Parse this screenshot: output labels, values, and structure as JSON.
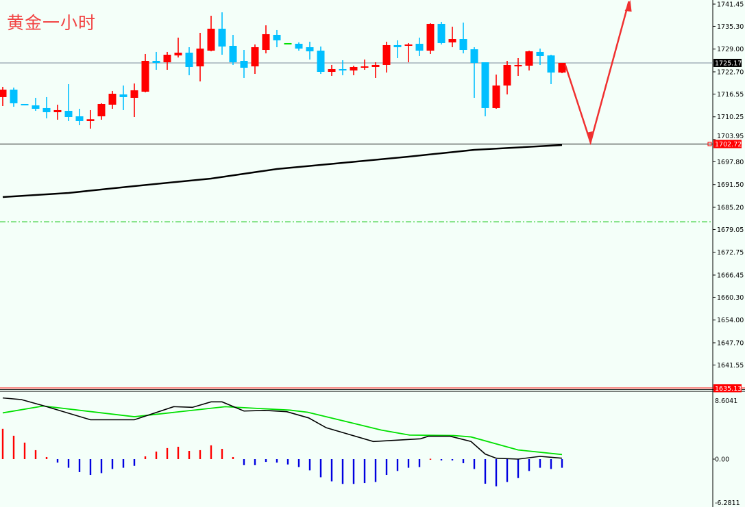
{
  "title": "黄金一小时",
  "colors": {
    "background": "#f4fff9",
    "up": "#ff0000",
    "down": "#00bfff",
    "ma": "#000000",
    "macd_line": "#000000",
    "signal_line": "#00e000",
    "hist_pos": "#ff0000",
    "hist_neg": "#0000e0",
    "arrow": "#f03030",
    "level_dash": "#00c000"
  },
  "chart_data": [
    {
      "type": "candlestick",
      "title": "黄金一小时",
      "ylim": [
        1635.13,
        1741.45
      ],
      "y_ticks": [
        "1741.45",
        "1735.30",
        "1729.00",
        "1722.70",
        "1716.55",
        "1710.25",
        "1703.95",
        "1697.80",
        "1691.50",
        "1685.20",
        "1679.05",
        "1672.75",
        "1666.45",
        "1660.30",
        "1654.00",
        "1647.70",
        "1641.55"
      ],
      "current_price_label": "1725.17",
      "level_label": "1702.72",
      "bottom_label": "1635.13",
      "horizontal_lines": [
        {
          "price": 1725.17,
          "color": "#7a8a9a",
          "style": "solid"
        },
        {
          "price": 1702.72,
          "color": "#000000",
          "style": "solid"
        },
        {
          "price": 1681.2,
          "color": "#00c000",
          "style": "dashdot"
        }
      ],
      "ohlc": [
        [
          1715.7,
          1718.54,
          1713.23,
          1717.78
        ],
        [
          1717.78,
          1718.35,
          1713.04,
          1714.0
        ],
        [
          1713.8,
          1713.8,
          1713.42,
          1713.42
        ],
        [
          1713.42,
          1715.51,
          1711.91,
          1712.47
        ],
        [
          1712.67,
          1715.7,
          1709.82,
          1711.53
        ],
        [
          1711.53,
          1713.61,
          1709.45,
          1712.1
        ],
        [
          1711.91,
          1719.29,
          1709.07,
          1710.2
        ],
        [
          1710.39,
          1712.47,
          1707.93,
          1709.07
        ],
        [
          1709.07,
          1712.1,
          1706.98,
          1709.58
        ],
        [
          1710.39,
          1714.0,
          1709.45,
          1713.8
        ],
        [
          1713.61,
          1717.4,
          1712.47,
          1716.64
        ],
        [
          1716.45,
          1718.92,
          1712.1,
          1715.7
        ],
        [
          1715.51,
          1719.48,
          1710.2,
          1717.59
        ],
        [
          1717.21,
          1727.63,
          1717.02,
          1725.73
        ],
        [
          1725.73,
          1728.2,
          1723.27,
          1725.17
        ],
        [
          1725.35,
          1728.2,
          1723.27,
          1727.44
        ],
        [
          1727.25,
          1732.17,
          1726.68,
          1728.01
        ],
        [
          1728.01,
          1729.52,
          1721.76,
          1724.03
        ],
        [
          1724.22,
          1733.5,
          1720.05,
          1729.14
        ],
        [
          1728.57,
          1738.23,
          1728.38,
          1734.64
        ],
        [
          1734.64,
          1739.18,
          1727.44,
          1729.71
        ],
        [
          1729.9,
          1732.93,
          1724.6,
          1725.35
        ],
        [
          1725.73,
          1728.76,
          1721.0,
          1723.84
        ],
        [
          1724.22,
          1730.28,
          1722.13,
          1729.52
        ],
        [
          1728.76,
          1735.58,
          1727.82,
          1733.12
        ],
        [
          1732.93,
          1734.26,
          1729.52,
          1731.42
        ],
        [
          1730.66,
          1730.66,
          1730.66,
          1730.66
        ],
        [
          1730.47,
          1730.85,
          1728.57,
          1729.14
        ],
        [
          1729.52,
          1731.04,
          1726.11,
          1728.38
        ],
        [
          1728.57,
          1729.71,
          1722.13,
          1722.7
        ],
        [
          1722.7,
          1724.6,
          1721.57,
          1723.46
        ],
        [
          1723.46,
          1725.92,
          1721.76,
          1723.27
        ],
        [
          1723.08,
          1724.41,
          1721.76,
          1724.03
        ],
        [
          1723.84,
          1726.11,
          1723.27,
          1724.22
        ],
        [
          1724.03,
          1725.35,
          1721.0,
          1724.6
        ],
        [
          1724.6,
          1731.04,
          1722.51,
          1730.09
        ],
        [
          1730.09,
          1731.42,
          1726.49,
          1729.52
        ],
        [
          1729.9,
          1730.66,
          1725.35,
          1730.28
        ],
        [
          1730.47,
          1732.17,
          1727.06,
          1728.57
        ],
        [
          1728.57,
          1736.15,
          1727.63,
          1735.96
        ],
        [
          1735.96,
          1736.53,
          1730.28,
          1730.66
        ],
        [
          1730.85,
          1735.2,
          1729.52,
          1731.79
        ],
        [
          1731.79,
          1736.34,
          1727.82,
          1728.76
        ],
        [
          1728.95,
          1729.52,
          1715.51,
          1725.17
        ],
        [
          1725.35,
          1725.35,
          1710.39,
          1712.67
        ],
        [
          1712.67,
          1721.95,
          1712.47,
          1718.92
        ],
        [
          1718.92,
          1725.73,
          1716.45,
          1724.6
        ],
        [
          1724.22,
          1726.49,
          1721.57,
          1724.6
        ],
        [
          1724.41,
          1728.57,
          1723.08,
          1728.38
        ],
        [
          1728.2,
          1729.14,
          1724.6,
          1727.06
        ],
        [
          1727.25,
          1727.44,
          1719.29,
          1722.51
        ],
        [
          1722.51,
          1725.17,
          1722.32,
          1725.17
        ]
      ],
      "moving_average": [
        [
          0,
          1688.04
        ],
        [
          6,
          1689.18
        ],
        [
          12,
          1691.08
        ],
        [
          19,
          1693.16
        ],
        [
          25,
          1695.81
        ],
        [
          31,
          1697.51
        ],
        [
          37,
          1699.22
        ],
        [
          40,
          1700.17
        ],
        [
          43,
          1701.11
        ],
        [
          51,
          1702.44
        ]
      ],
      "arrow_annotation": [
        [
          51.3,
          1724.6
        ],
        [
          53.6,
          1703.2
        ],
        [
          57.1,
          1742.2
        ]
      ]
    },
    {
      "type": "macd",
      "ylim": [
        -6.2811,
        8.6041
      ],
      "y_ticks": [
        "8.6041",
        "0.00",
        "-6.2811"
      ],
      "histogram": [
        4.09,
        3.16,
        2.23,
        1.21,
        0.28,
        -0.5,
        -1.24,
        -1.86,
        -2.26,
        -2.01,
        -1.42,
        -1.24,
        -0.96,
        0.37,
        1.02,
        1.49,
        1.67,
        1.11,
        1.21,
        1.86,
        1.39,
        0.28,
        -0.87,
        -0.87,
        -0.4,
        -0.5,
        -0.77,
        -1.15,
        -1.61,
        -2.6,
        -3.19,
        -3.56,
        -3.56,
        -3.44,
        -3.28,
        -2.26,
        -1.7,
        -1.24,
        -1.15,
        0.05,
        -0.19,
        -0.19,
        -0.59,
        -1.42,
        -3.53,
        -3.9,
        -3.28,
        -2.72,
        -1.7,
        -1.24,
        -1.42,
        -1.24
      ],
      "macd": [
        [
          0,
          8.27
        ],
        [
          1.7,
          8.05
        ],
        [
          3.8,
          7.18
        ],
        [
          8,
          5.32
        ],
        [
          12,
          5.32
        ],
        [
          15.6,
          7.09
        ],
        [
          17.3,
          7.0
        ],
        [
          19,
          7.74
        ],
        [
          20,
          7.74
        ],
        [
          22,
          6.5
        ],
        [
          23.9,
          6.59
        ],
        [
          25.9,
          6.41
        ],
        [
          27.9,
          5.57
        ],
        [
          29.5,
          4.24
        ],
        [
          33.8,
          2.38
        ],
        [
          38.1,
          2.75
        ],
        [
          38.8,
          3.09
        ],
        [
          40.8,
          3.09
        ],
        [
          42.7,
          2.38
        ],
        [
          44,
          0.68
        ],
        [
          45,
          0.12
        ],
        [
          47,
          0.0
        ],
        [
          49,
          0.37
        ],
        [
          51,
          0.12
        ]
      ],
      "signal": [
        [
          0,
          6.25
        ],
        [
          3.7,
          7.18
        ],
        [
          12,
          5.73
        ],
        [
          20.3,
          7.09
        ],
        [
          26.2,
          6.62
        ],
        [
          27.8,
          6.34
        ],
        [
          34.5,
          3.93
        ],
        [
          37.1,
          3.25
        ],
        [
          41.1,
          3.19
        ],
        [
          42.7,
          3.0
        ],
        [
          47,
          1.24
        ],
        [
          51,
          0.62
        ]
      ]
    }
  ]
}
